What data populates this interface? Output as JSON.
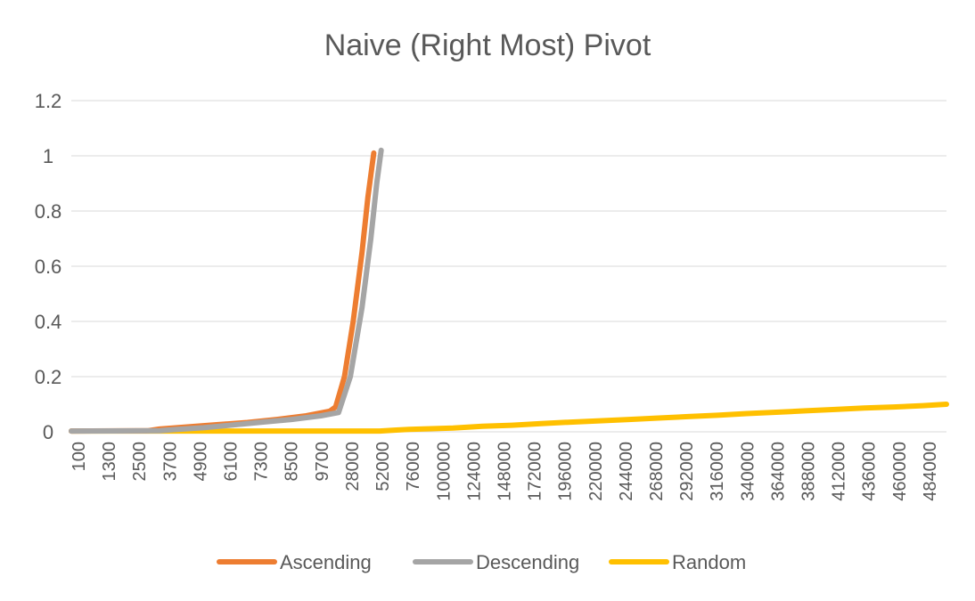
{
  "chart_data": {
    "type": "line",
    "title": "Naive (Right Most) Pivot",
    "xlabel": "",
    "ylabel": "",
    "ylim": [
      0,
      1.2
    ],
    "yticks": [
      "0",
      "0.2",
      "0.4",
      "0.6",
      "0.8",
      "1",
      "1.2"
    ],
    "grid": true,
    "legend_position": "bottom",
    "x_tick_labels": [
      "100",
      "1300",
      "2500",
      "3700",
      "4900",
      "6100",
      "7300",
      "8500",
      "9700",
      "28000",
      "52000",
      "76000",
      "100000",
      "124000",
      "148000",
      "172000",
      "196000",
      "220000",
      "244000",
      "268000",
      "292000",
      "316000",
      "340000",
      "364000",
      "388000",
      "412000",
      "436000",
      "460000",
      "484000"
    ],
    "series": [
      {
        "name": "Ascending",
        "color": "#ED7D31",
        "points": [
          [
            0,
            0.003
          ],
          [
            2.6,
            0.004
          ],
          [
            3.0,
            0.01
          ],
          [
            4.0,
            0.018
          ],
          [
            5.0,
            0.026
          ],
          [
            6.0,
            0.034
          ],
          [
            7.0,
            0.045
          ],
          [
            8.0,
            0.058
          ],
          [
            8.8,
            0.075
          ],
          [
            9.0,
            0.09
          ],
          [
            9.3,
            0.2
          ],
          [
            9.6,
            0.4
          ],
          [
            9.9,
            0.65
          ],
          [
            10.1,
            0.85
          ],
          [
            10.3,
            1.01
          ]
        ]
      },
      {
        "name": "Descending",
        "color": "#A5A5A5",
        "points": [
          [
            0,
            0.003
          ],
          [
            3.0,
            0.004
          ],
          [
            3.5,
            0.008
          ],
          [
            4.5,
            0.015
          ],
          [
            5.5,
            0.025
          ],
          [
            6.5,
            0.035
          ],
          [
            7.5,
            0.045
          ],
          [
            8.5,
            0.058
          ],
          [
            9.1,
            0.07
          ],
          [
            9.5,
            0.2
          ],
          [
            9.9,
            0.45
          ],
          [
            10.2,
            0.7
          ],
          [
            10.4,
            0.9
          ],
          [
            10.55,
            1.02
          ]
        ]
      },
      {
        "name": "Random",
        "color": "#FFC000",
        "points": [
          [
            0,
            0.003
          ],
          [
            10.5,
            0.003
          ],
          [
            11.0,
            0.006
          ],
          [
            11.5,
            0.009
          ],
          [
            13.0,
            0.014
          ],
          [
            14.0,
            0.02
          ],
          [
            15.0,
            0.024
          ],
          [
            16.0,
            0.03
          ],
          [
            17.0,
            0.035
          ],
          [
            18.0,
            0.04
          ],
          [
            19.0,
            0.045
          ],
          [
            20.0,
            0.05
          ],
          [
            21.0,
            0.055
          ],
          [
            22.0,
            0.06
          ],
          [
            23.0,
            0.066
          ],
          [
            24.0,
            0.071
          ],
          [
            25.0,
            0.076
          ],
          [
            26.0,
            0.081
          ],
          [
            27.0,
            0.086
          ],
          [
            28.0,
            0.09
          ],
          [
            29.0,
            0.095
          ],
          [
            29.8,
            0.1
          ]
        ]
      }
    ]
  }
}
